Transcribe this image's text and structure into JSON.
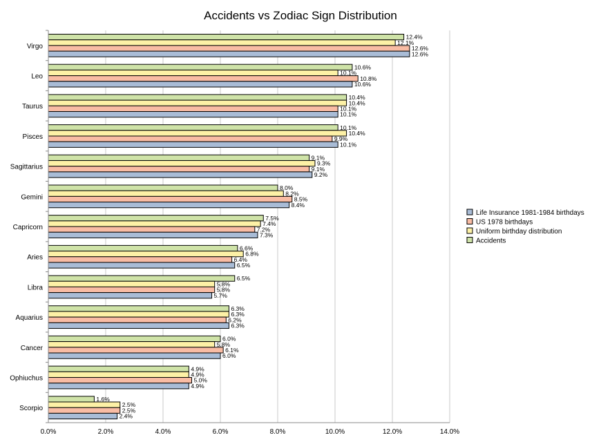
{
  "chart_data": {
    "type": "bar",
    "orientation": "horizontal",
    "title": "Accidents vs Zodiac Sign Distribution",
    "xlabel": "",
    "ylabel": "",
    "xlim": [
      0,
      14
    ],
    "x_ticks": [
      0,
      2,
      4,
      6,
      8,
      10,
      12,
      14
    ],
    "x_tick_labels": [
      "0.0%",
      "2.0%",
      "4.0%",
      "6.0%",
      "8.0%",
      "10.0%",
      "12.0%",
      "14.0%"
    ],
    "grid": true,
    "legend_position": "right",
    "categories": [
      "Virgo",
      "Leo",
      "Taurus",
      "Pisces",
      "Sagittarius",
      "Gemini",
      "Capricorn",
      "Aries",
      "Libra",
      "Aquarius",
      "Cancer",
      "Ophiuchus",
      "Scorpio"
    ],
    "series": [
      {
        "name": "Accidents",
        "color": "#cfe3a8",
        "values": [
          12.4,
          10.6,
          10.4,
          10.1,
          9.1,
          8.0,
          7.5,
          6.6,
          6.5,
          6.3,
          6.0,
          4.9,
          1.6
        ],
        "labels": [
          "12.4%",
          "10.6%",
          "10.4%",
          "10.1%",
          "9.1%",
          "8.0%",
          "7.5%",
          "6.6%",
          "6.5%",
          "6.3%",
          "6.0%",
          "4.9%",
          "1.6%"
        ]
      },
      {
        "name": "Uniform birthday distribution",
        "color": "#fdf1a6",
        "values": [
          12.1,
          10.1,
          10.4,
          10.4,
          9.3,
          8.2,
          7.4,
          6.8,
          5.8,
          6.3,
          5.8,
          4.9,
          2.5
        ],
        "labels": [
          "12.1%",
          "10.1%",
          "10.4%",
          "10.4%",
          "9.3%",
          "8.2%",
          "7.4%",
          "6.8%",
          "5.8%",
          "6.3%",
          "5.8%",
          "4.9%",
          "2.5%"
        ]
      },
      {
        "name": "US 1978 birthdays",
        "color": "#f9bca4",
        "values": [
          12.6,
          10.8,
          10.1,
          9.9,
          9.1,
          8.5,
          7.2,
          6.4,
          5.8,
          6.2,
          6.1,
          5.0,
          2.5
        ],
        "labels": [
          "12.6%",
          "10.8%",
          "10.1%",
          "9.9%",
          "9.1%",
          "8.5%",
          "7.2%",
          "6.4%",
          "5.8%",
          "6.2%",
          "6.1%",
          "5.0%",
          "2.5%"
        ]
      },
      {
        "name": "Life Insurance 1981-1984 birthdays",
        "color": "#a9bcd6",
        "values": [
          12.6,
          10.6,
          10.1,
          10.1,
          9.2,
          8.4,
          7.3,
          6.5,
          5.7,
          6.3,
          6.0,
          4.9,
          2.4
        ],
        "labels": [
          "12.6%",
          "10.6%",
          "10.1%",
          "10.1%",
          "9.2%",
          "8.4%",
          "7.3%",
          "6.5%",
          "5.7%",
          "6.3%",
          "6.0%",
          "4.9%",
          "2.4%"
        ]
      }
    ],
    "legend": [
      {
        "label": "Life Insurance 1981-1984 birthdays",
        "color": "#a9bcd6"
      },
      {
        "label": "US 1978 birthdays",
        "color": "#f9bca4"
      },
      {
        "label": "Uniform birthday distribution",
        "color": "#fdf1a6"
      },
      {
        "label": "Accidents",
        "color": "#cfe3a8"
      }
    ]
  }
}
